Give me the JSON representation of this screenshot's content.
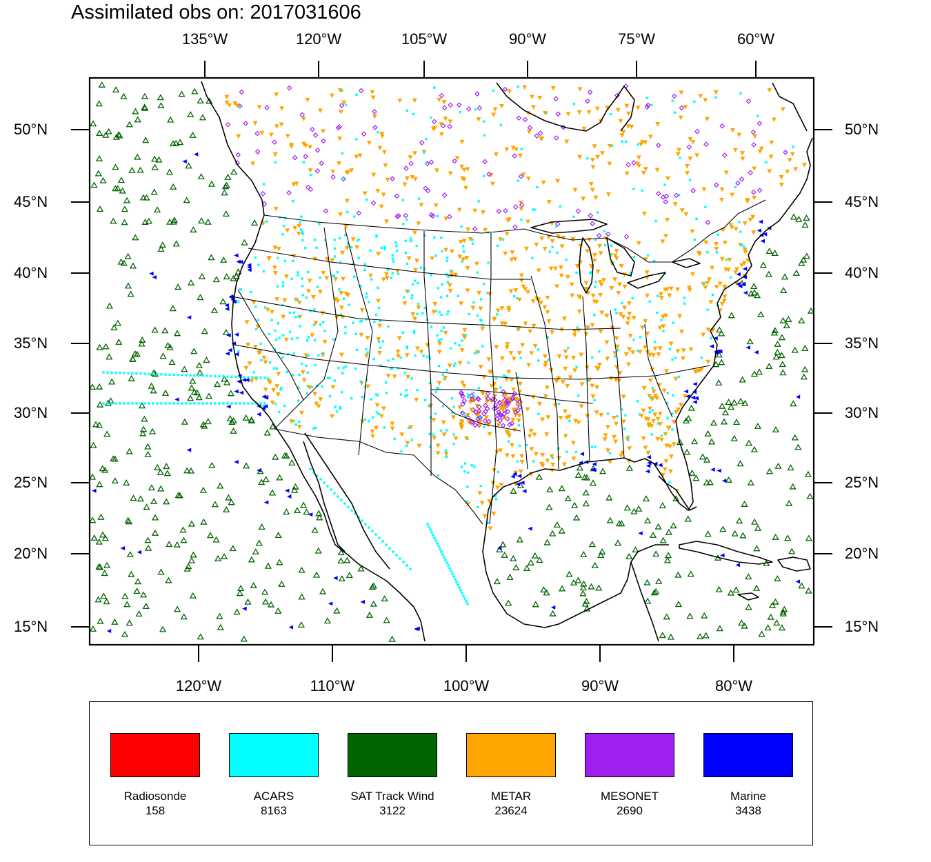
{
  "title": "Assimilated obs on: 2017031606",
  "axes": {
    "top_lon_labels": [
      "135°W",
      "120°W",
      "105°W",
      "90°W",
      "75°W",
      "60°W"
    ],
    "bottom_lon_labels": [
      "120°W",
      "110°W",
      "100°W",
      "90°W",
      "80°W"
    ],
    "lat_labels": [
      "50°N",
      "45°N",
      "40°N",
      "35°N",
      "30°N",
      "25°N",
      "20°N",
      "15°N"
    ]
  },
  "legend": [
    {
      "name": "Radiosonde",
      "count": "158",
      "color": "#ff0000"
    },
    {
      "name": "ACARS",
      "count": "8163",
      "color": "#00ffff"
    },
    {
      "name": "SAT Track Wind",
      "count": "3122",
      "color": "#006400"
    },
    {
      "name": "METAR",
      "count": "23624",
      "color": "#ffa500"
    },
    {
      "name": "MESONET",
      "count": "2690",
      "color": "#a020f0"
    },
    {
      "name": "Marine",
      "count": "3438",
      "color": "#0000ff"
    }
  ],
  "icons": {
    "SAT Track Wind": "triangle-up-outline",
    "METAR": "triangle-down-filled",
    "MESONET": "diamond-outline",
    "Marine": "triangle-left-filled",
    "ACARS": "square-dot"
  }
}
